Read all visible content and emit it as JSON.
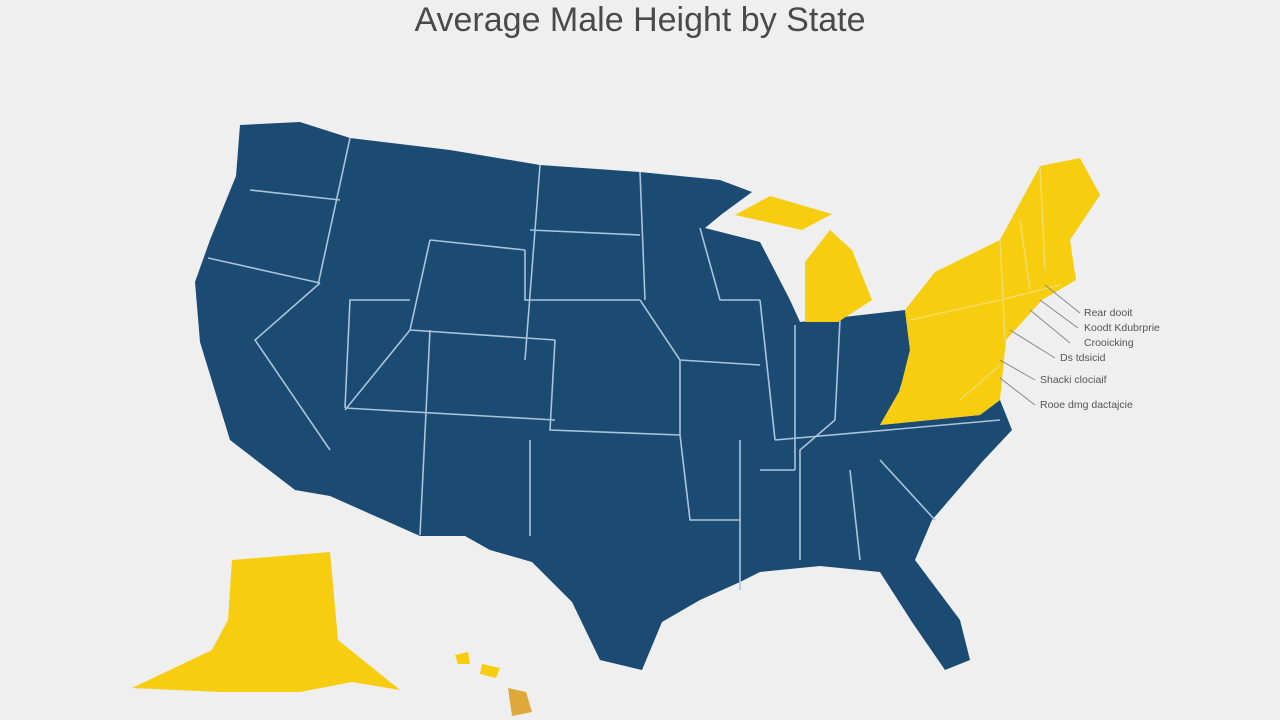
{
  "title": "Average Male Height by State",
  "annotations": [
    "Rear dooit",
    "Koodt Kdubrprie",
    "Crooicking",
    "Ds tdsicid",
    "Shacki clociaif",
    "Rooe dmg dactajcie"
  ]
}
